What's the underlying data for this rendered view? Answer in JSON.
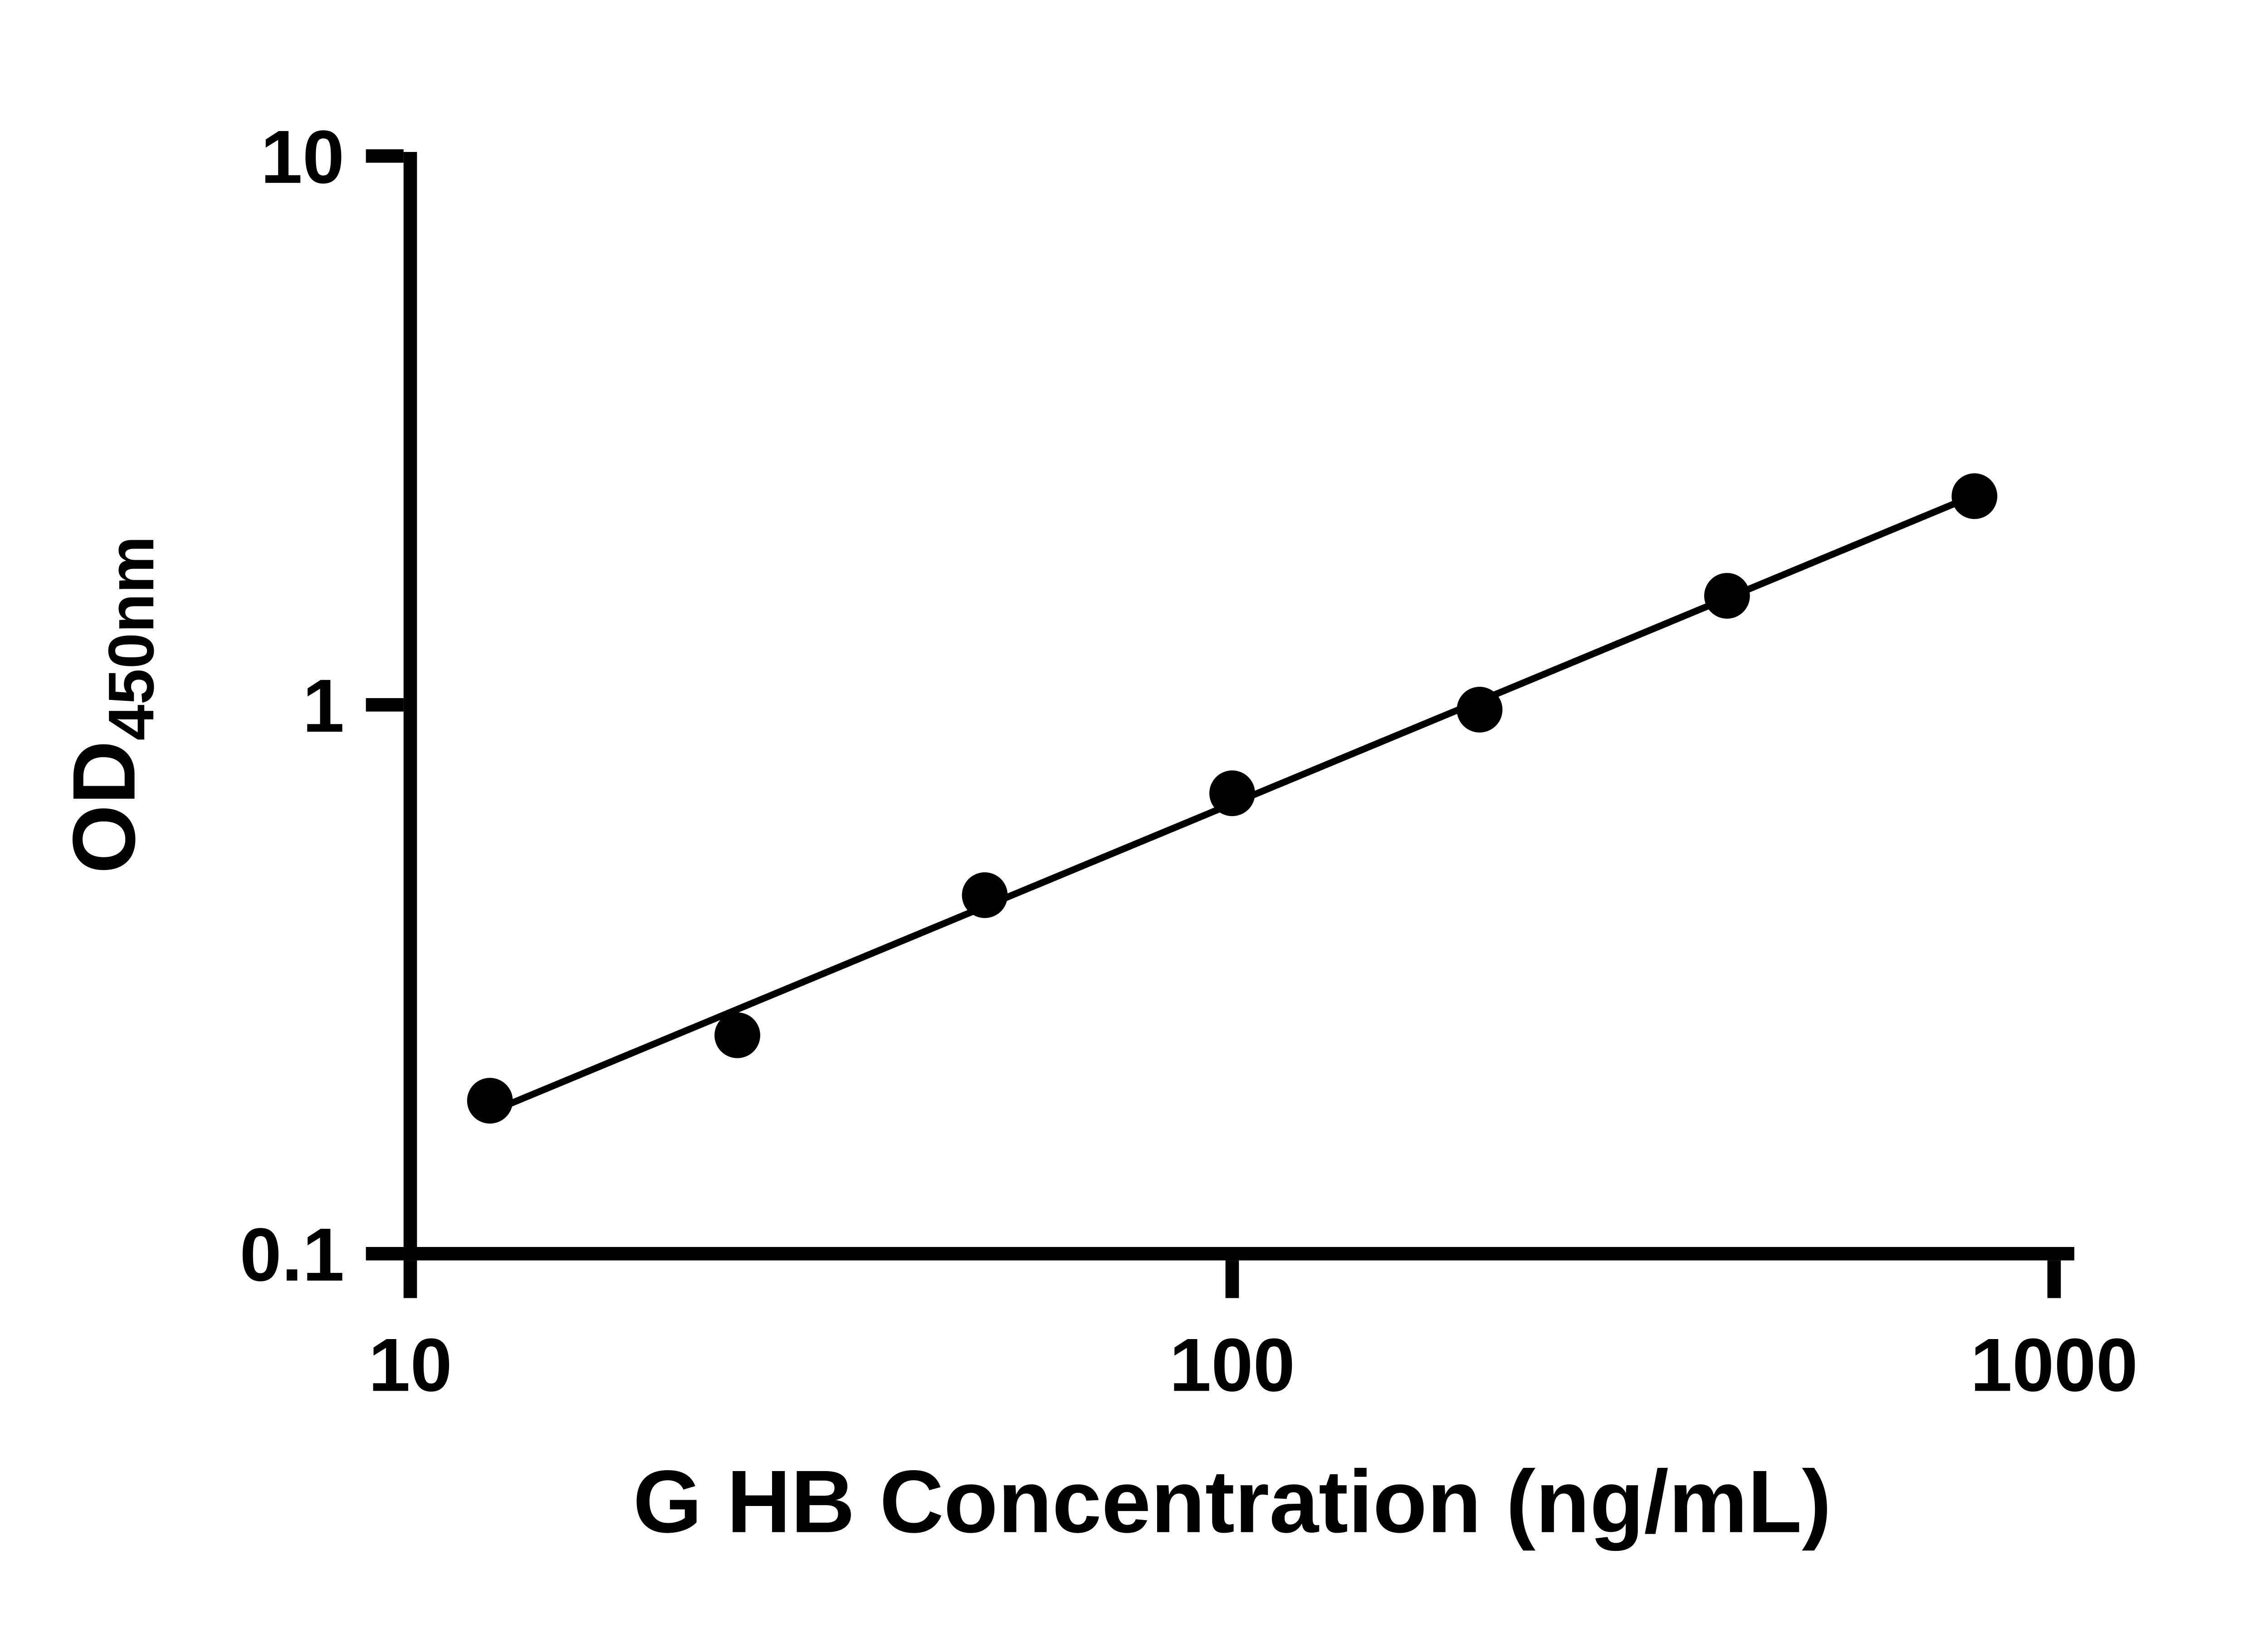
{
  "figure": {
    "background_color": "#ffffff",
    "foreground_color": "#000000"
  },
  "chart_data": {
    "type": "scatter",
    "title": "",
    "xlabel": "G HB Concentration (ng/mL)",
    "ylabel_main": "OD",
    "ylabel_sub": "450nm",
    "xscale": "log",
    "yscale": "log",
    "xlim": [
      10,
      1000
    ],
    "ylim": [
      0.1,
      10
    ],
    "x_ticks": [
      10,
      100,
      1000
    ],
    "x_tick_labels": [
      "10",
      "100",
      "1000"
    ],
    "y_ticks": [
      0.1,
      1,
      10
    ],
    "y_tick_labels": [
      "0.1",
      "1",
      "10"
    ],
    "x": [
      12.5,
      25,
      50,
      100,
      200,
      400,
      800
    ],
    "y": [
      0.19,
      0.25,
      0.45,
      0.69,
      0.98,
      1.58,
      2.4
    ],
    "trendline": true,
    "legend": "none",
    "grid": false,
    "marker_color": "#000000",
    "line_color": "#000000",
    "marker_radius": 17,
    "line_width": 5,
    "axis_width": 10
  }
}
